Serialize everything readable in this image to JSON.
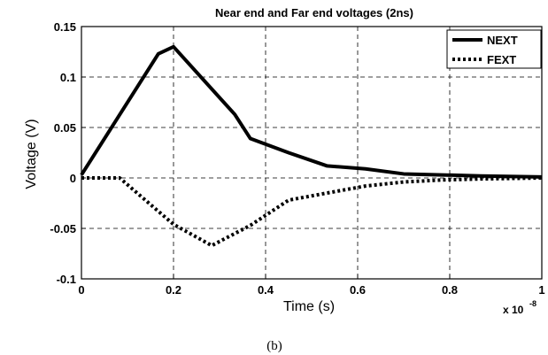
{
  "chart_data": {
    "type": "line",
    "title": "Near end and Far end voltages (2ns)",
    "xlabel": "Time (s)",
    "ylabel": "Voltage (V)",
    "x_multiplier_label": "x 10",
    "x_multiplier_exponent": "-8",
    "xlim": [
      0,
      1
    ],
    "ylim": [
      -0.1,
      0.15
    ],
    "x_ticks": [
      "0",
      "0.2",
      "0.4",
      "0.6",
      "0.8",
      "1"
    ],
    "y_ticks": [
      "0.15",
      "0.1",
      "0.05",
      "0",
      "-0.05",
      "-0.1"
    ],
    "grid": true,
    "legend_position": "top-right",
    "series": [
      {
        "name": "NEXT",
        "style": "solid",
        "color": "#000000",
        "x": [
          0,
          0.167,
          0.2,
          0.333,
          0.367,
          0.45,
          0.533,
          0.617,
          0.7,
          0.783,
          0.867,
          1.0
        ],
        "y": [
          0.003,
          0.123,
          0.13,
          0.063,
          0.039,
          0.025,
          0.012,
          0.009,
          0.004,
          0.003,
          0.002,
          0.001
        ]
      },
      {
        "name": "FEXT",
        "style": "dotted",
        "color": "#000000",
        "x": [
          0,
          0.083,
          0.2,
          0.283,
          0.367,
          0.45,
          0.533,
          0.617,
          0.7,
          0.783,
          0.867,
          1.0
        ],
        "y": [
          0.0,
          0.0,
          -0.046,
          -0.067,
          -0.047,
          -0.022,
          -0.015,
          -0.008,
          -0.004,
          -0.002,
          -0.001,
          0.0
        ]
      }
    ]
  },
  "caption": "(b)"
}
